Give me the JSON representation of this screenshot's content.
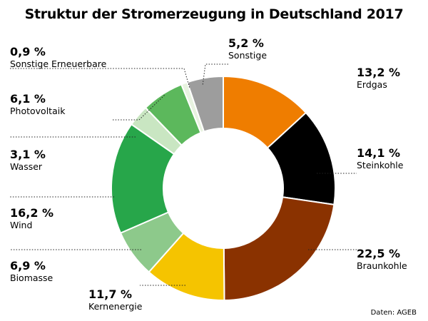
{
  "chart_data": {
    "type": "pie",
    "variant": "donut",
    "title": "Struktur der Stromerzeugung in Deutschland 2017",
    "source": "Daten: AGEB",
    "unit": "%",
    "slices": [
      {
        "name": "Erdgas",
        "value": 13.2,
        "label": "13,2 %",
        "color": "#ef7d00"
      },
      {
        "name": "Steinkohle",
        "value": 14.1,
        "label": "14,1 %",
        "color": "#000000"
      },
      {
        "name": "Braunkohle",
        "value": 22.5,
        "label": "22,5 %",
        "color": "#8a3200"
      },
      {
        "name": "Kernenergie",
        "value": 11.7,
        "label": "11,7 %",
        "color": "#f5c400"
      },
      {
        "name": "Biomasse",
        "value": 6.9,
        "label": "6,9 %",
        "color": "#8dc98b"
      },
      {
        "name": "Wind",
        "value": 16.2,
        "label": "16,2 %",
        "color": "#27a64a"
      },
      {
        "name": "Wasser",
        "value": 3.1,
        "label": "3,1 %",
        "color": "#c9e6c2"
      },
      {
        "name": "Photovoltaik",
        "value": 6.1,
        "label": "6,1 %",
        "color": "#5cb85c"
      },
      {
        "name": "Sonstige Erneuerbare",
        "value": 0.9,
        "label": "0,9 %",
        "color": "#e8f3e0"
      },
      {
        "name": "Sonstige",
        "value": 5.2,
        "label": "5,2 %",
        "color": "#9d9d9d"
      }
    ]
  }
}
